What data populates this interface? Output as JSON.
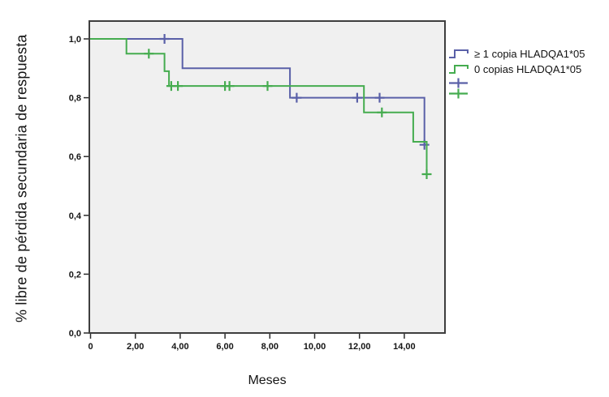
{
  "chart_data": {
    "type": "line",
    "subtype": "kaplan-meier-step",
    "title": "",
    "xlabel": "Meses",
    "ylabel": "% libre de pérdida secundaria de respuesta",
    "x_ticks": {
      "values": [
        0,
        2,
        4,
        6,
        8,
        10,
        12,
        14
      ],
      "labels": [
        "0",
        "2,00",
        "4,00",
        "6,00",
        "8,00",
        "10,00",
        "12,00",
        "14,00"
      ]
    },
    "y_ticks": {
      "values": [
        0.0,
        0.2,
        0.4,
        0.6,
        0.8,
        1.0
      ],
      "labels": [
        "0,0",
        "0,2",
        "0,4",
        "0,6",
        "0,8",
        "1,0"
      ]
    },
    "xlim": [
      0,
      15.8
    ],
    "ylim": [
      0,
      1.06
    ],
    "grid": false,
    "legend_position": "right",
    "plot_background": "#f0f0f0",
    "border_color": "#3e3e3e",
    "tick_color": "#2b2b2b",
    "text_color": "#141414",
    "series": [
      {
        "name": "≥ 1 copia HLADQA1*05",
        "color": "#5a60a8",
        "steps": [
          [
            0,
            1.0
          ],
          [
            4.1,
            1.0
          ],
          [
            4.1,
            0.9
          ],
          [
            8.9,
            0.9
          ],
          [
            8.9,
            0.8
          ],
          [
            14.9,
            0.8
          ],
          [
            14.9,
            0.64
          ]
        ],
        "censored": [
          [
            3.3,
            1.0
          ],
          [
            9.2,
            0.8
          ],
          [
            11.9,
            0.8
          ],
          [
            12.9,
            0.8
          ],
          [
            14.9,
            0.64
          ]
        ]
      },
      {
        "name": "0 copias HLADQA1*05",
        "color": "#45ac4f",
        "steps": [
          [
            0,
            1.0
          ],
          [
            1.6,
            1.0
          ],
          [
            1.6,
            0.95
          ],
          [
            3.3,
            0.95
          ],
          [
            3.3,
            0.89
          ],
          [
            3.5,
            0.89
          ],
          [
            3.5,
            0.84
          ],
          [
            12.2,
            0.84
          ],
          [
            12.2,
            0.75
          ],
          [
            14.4,
            0.75
          ],
          [
            14.4,
            0.65
          ],
          [
            15.0,
            0.65
          ],
          [
            15.0,
            0.54
          ]
        ],
        "censored": [
          [
            2.6,
            0.95
          ],
          [
            3.6,
            0.84
          ],
          [
            3.9,
            0.84
          ],
          [
            6.0,
            0.84
          ],
          [
            6.2,
            0.84
          ],
          [
            7.9,
            0.84
          ],
          [
            13.0,
            0.75
          ],
          [
            15.0,
            0.54
          ]
        ]
      }
    ]
  }
}
